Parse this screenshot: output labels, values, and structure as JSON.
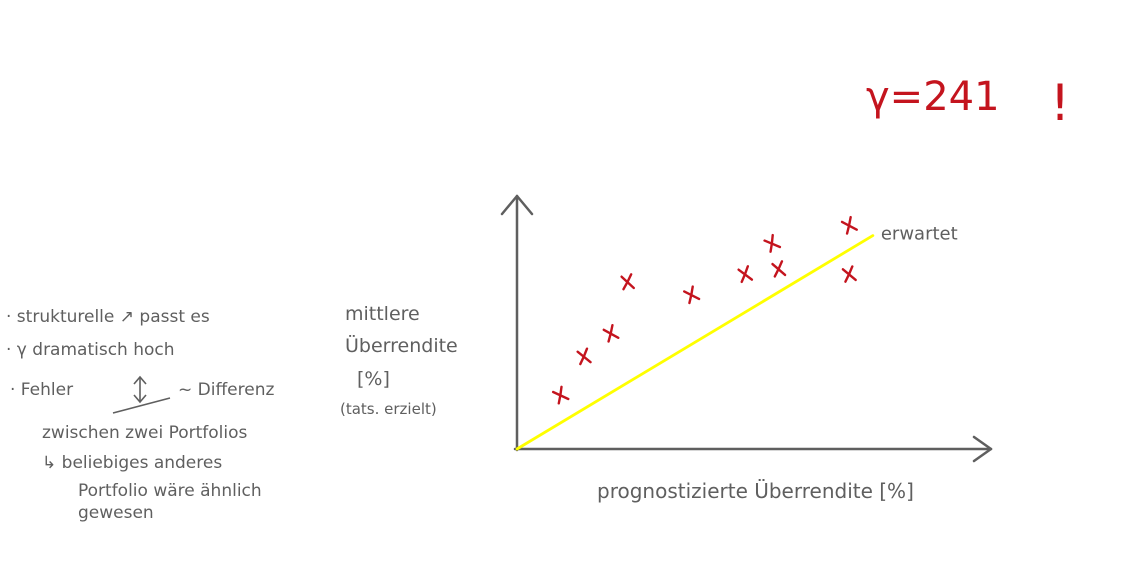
{
  "notes": {
    "line1": "· strukturelle ↗ passt es",
    "line2": "· γ dramatisch hoch",
    "line3_a": "· Fehler",
    "line3_b": "~ Differenz",
    "line4": "zwischen zwei Portfolios",
    "line5": "↳ beliebiges anderes",
    "line6": "Portfolio wäre ähnlich",
    "line7": "gewesen"
  },
  "annotation": {
    "gamma_label": "γ=241",
    "exclamation": "!"
  },
  "chart_data": {
    "type": "scatter",
    "title": "",
    "xlabel": "prognostizierte Überrendite [%]",
    "ylabel": [
      "mittlere",
      "Überrendite",
      "[%]",
      "(tats. erzielt)"
    ],
    "series": [
      {
        "name": "",
        "points": [
          {
            "x": 0.13,
            "y": 0.21
          },
          {
            "x": 0.2,
            "y": 0.36
          },
          {
            "x": 0.28,
            "y": 0.45
          },
          {
            "x": 0.33,
            "y": 0.65
          },
          {
            "x": 0.52,
            "y": 0.6
          },
          {
            "x": 0.68,
            "y": 0.68
          },
          {
            "x": 0.76,
            "y": 0.8
          },
          {
            "x": 0.78,
            "y": 0.7
          },
          {
            "x": 0.99,
            "y": 0.87
          },
          {
            "x": 0.99,
            "y": 0.68
          }
        ]
      }
    ],
    "reference_line": {
      "label": "erwartet",
      "from": {
        "x": 0,
        "y": 0
      },
      "to": {
        "x": 1.06,
        "y": 0.83
      },
      "color": "#ffff00"
    },
    "axis_color": "#5f5f5f",
    "marker_color": "#c4141e",
    "xlim": [
      0,
      1.4
    ],
    "ylim": [
      0,
      0.98
    ],
    "grid": false,
    "legend": "none"
  }
}
